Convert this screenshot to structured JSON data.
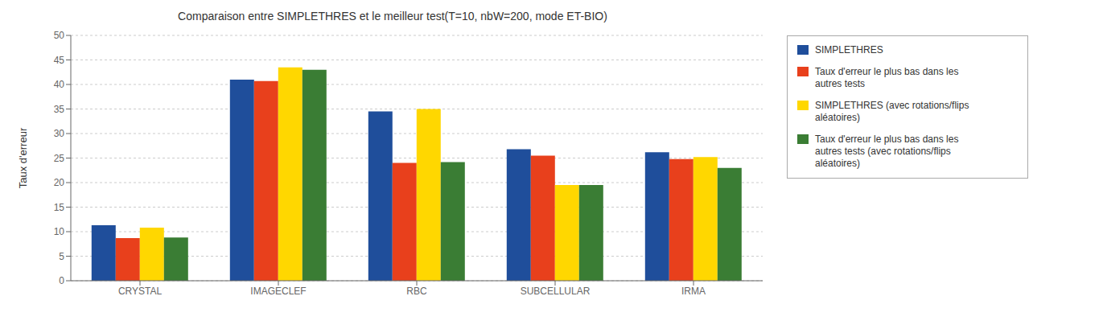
{
  "chart_data": {
    "type": "bar",
    "title": "Comparaison entre SIMPLETHRES et le meilleur test(T=10, nbW=200, mode ET-BIO)",
    "ylabel": "Taux d'erreur",
    "categories": [
      "CRYSTAL",
      "IMAGECLEF",
      "RBC",
      "SUBCELLULAR",
      "IRMA"
    ],
    "series": [
      {
        "name": "SIMPLETHRES",
        "color": "#1F4E9B",
        "values": [
          11.3,
          41.0,
          34.5,
          26.8,
          26.2
        ]
      },
      {
        "name": "Taux d'erreur le plus bas dans les\nautres tests",
        "color": "#E8401C",
        "values": [
          8.7,
          40.7,
          24.0,
          25.5,
          24.8
        ]
      },
      {
        "name": "SIMPLETHRES (avec rotations/flips\naléatoires)",
        "color": "#FFD700",
        "values": [
          10.8,
          43.5,
          35.0,
          19.5,
          25.2
        ]
      },
      {
        "name": "Taux d'erreur le plus bas dans les\nautres tests  (avec rotations/flips\naléatoires)",
        "color": "#3A7D34",
        "values": [
          8.8,
          43.0,
          24.2,
          19.5,
          23.0
        ]
      }
    ],
    "ylim": [
      0,
      50
    ],
    "yticks": [
      0,
      5,
      10,
      15,
      20,
      25,
      30,
      35,
      40,
      45,
      50
    ],
    "grid": true,
    "legend": "right"
  }
}
